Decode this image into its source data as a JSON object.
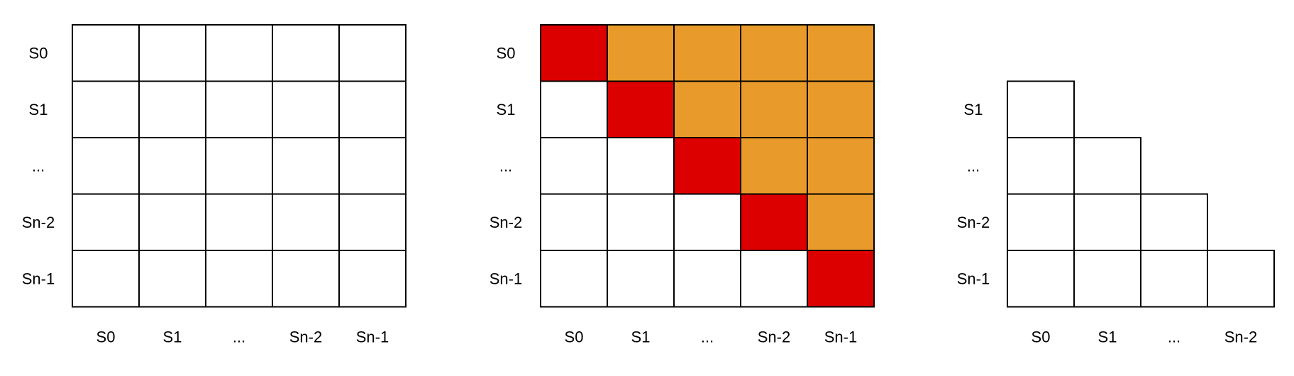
{
  "colors": {
    "empty": "#ffffff",
    "diagonal": "#dd0000",
    "upper": "#e89b2a",
    "stroke": "#000000"
  },
  "grids": [
    {
      "name": "full-matrix",
      "row_labels": [
        "S0",
        "S1",
        "...",
        "Sn-2",
        "Sn-1"
      ],
      "col_labels": [
        "S0",
        "S1",
        "...",
        "Sn-2",
        "Sn-1"
      ],
      "cells": [
        [
          "empty",
          "empty",
          "empty",
          "empty",
          "empty"
        ],
        [
          "empty",
          "empty",
          "empty",
          "empty",
          "empty"
        ],
        [
          "empty",
          "empty",
          "empty",
          "empty",
          "empty"
        ],
        [
          "empty",
          "empty",
          "empty",
          "empty",
          "empty"
        ],
        [
          "empty",
          "empty",
          "empty",
          "empty",
          "empty"
        ]
      ]
    },
    {
      "name": "highlighted-matrix",
      "row_labels": [
        "S0",
        "S1",
        "...",
        "Sn-2",
        "Sn-1"
      ],
      "col_labels": [
        "S0",
        "S1",
        "...",
        "Sn-2",
        "Sn-1"
      ],
      "cells": [
        [
          "diagonal",
          "upper",
          "upper",
          "upper",
          "upper"
        ],
        [
          "empty",
          "diagonal",
          "upper",
          "upper",
          "upper"
        ],
        [
          "empty",
          "empty",
          "diagonal",
          "upper",
          "upper"
        ],
        [
          "empty",
          "empty",
          "empty",
          "diagonal",
          "upper"
        ],
        [
          "empty",
          "empty",
          "empty",
          "empty",
          "diagonal"
        ]
      ]
    },
    {
      "name": "lower-triangle",
      "row_labels": [
        "",
        "S1",
        "...",
        "Sn-2",
        "Sn-1"
      ],
      "col_labels": [
        "S0",
        "S1",
        "...",
        "Sn-2"
      ],
      "cells": [
        [
          null,
          null,
          null,
          null
        ],
        [
          "empty",
          null,
          null,
          null
        ],
        [
          "empty",
          "empty",
          null,
          null
        ],
        [
          "empty",
          "empty",
          "empty",
          null
        ],
        [
          "empty",
          "empty",
          "empty",
          "empty"
        ]
      ]
    }
  ]
}
